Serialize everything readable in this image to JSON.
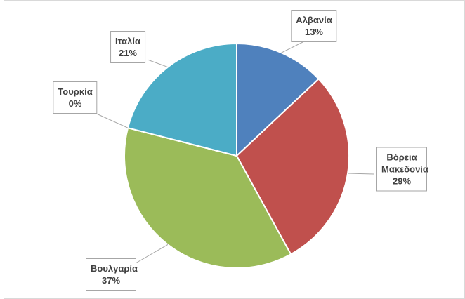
{
  "chart_data": {
    "type": "pie",
    "categories": [
      "Αλβανία",
      "Βόρεια Μακεδονία",
      "Βουλγαρία",
      "Τουρκία",
      "Ιταλία"
    ],
    "values": [
      13,
      29,
      37,
      0,
      21
    ],
    "value_labels": [
      "13%",
      "29%",
      "37%",
      "0%",
      "21%"
    ],
    "colors": [
      "#4f81bd",
      "#c0504d",
      "#9bbb59",
      "#8064a2",
      "#4bacc6"
    ]
  }
}
